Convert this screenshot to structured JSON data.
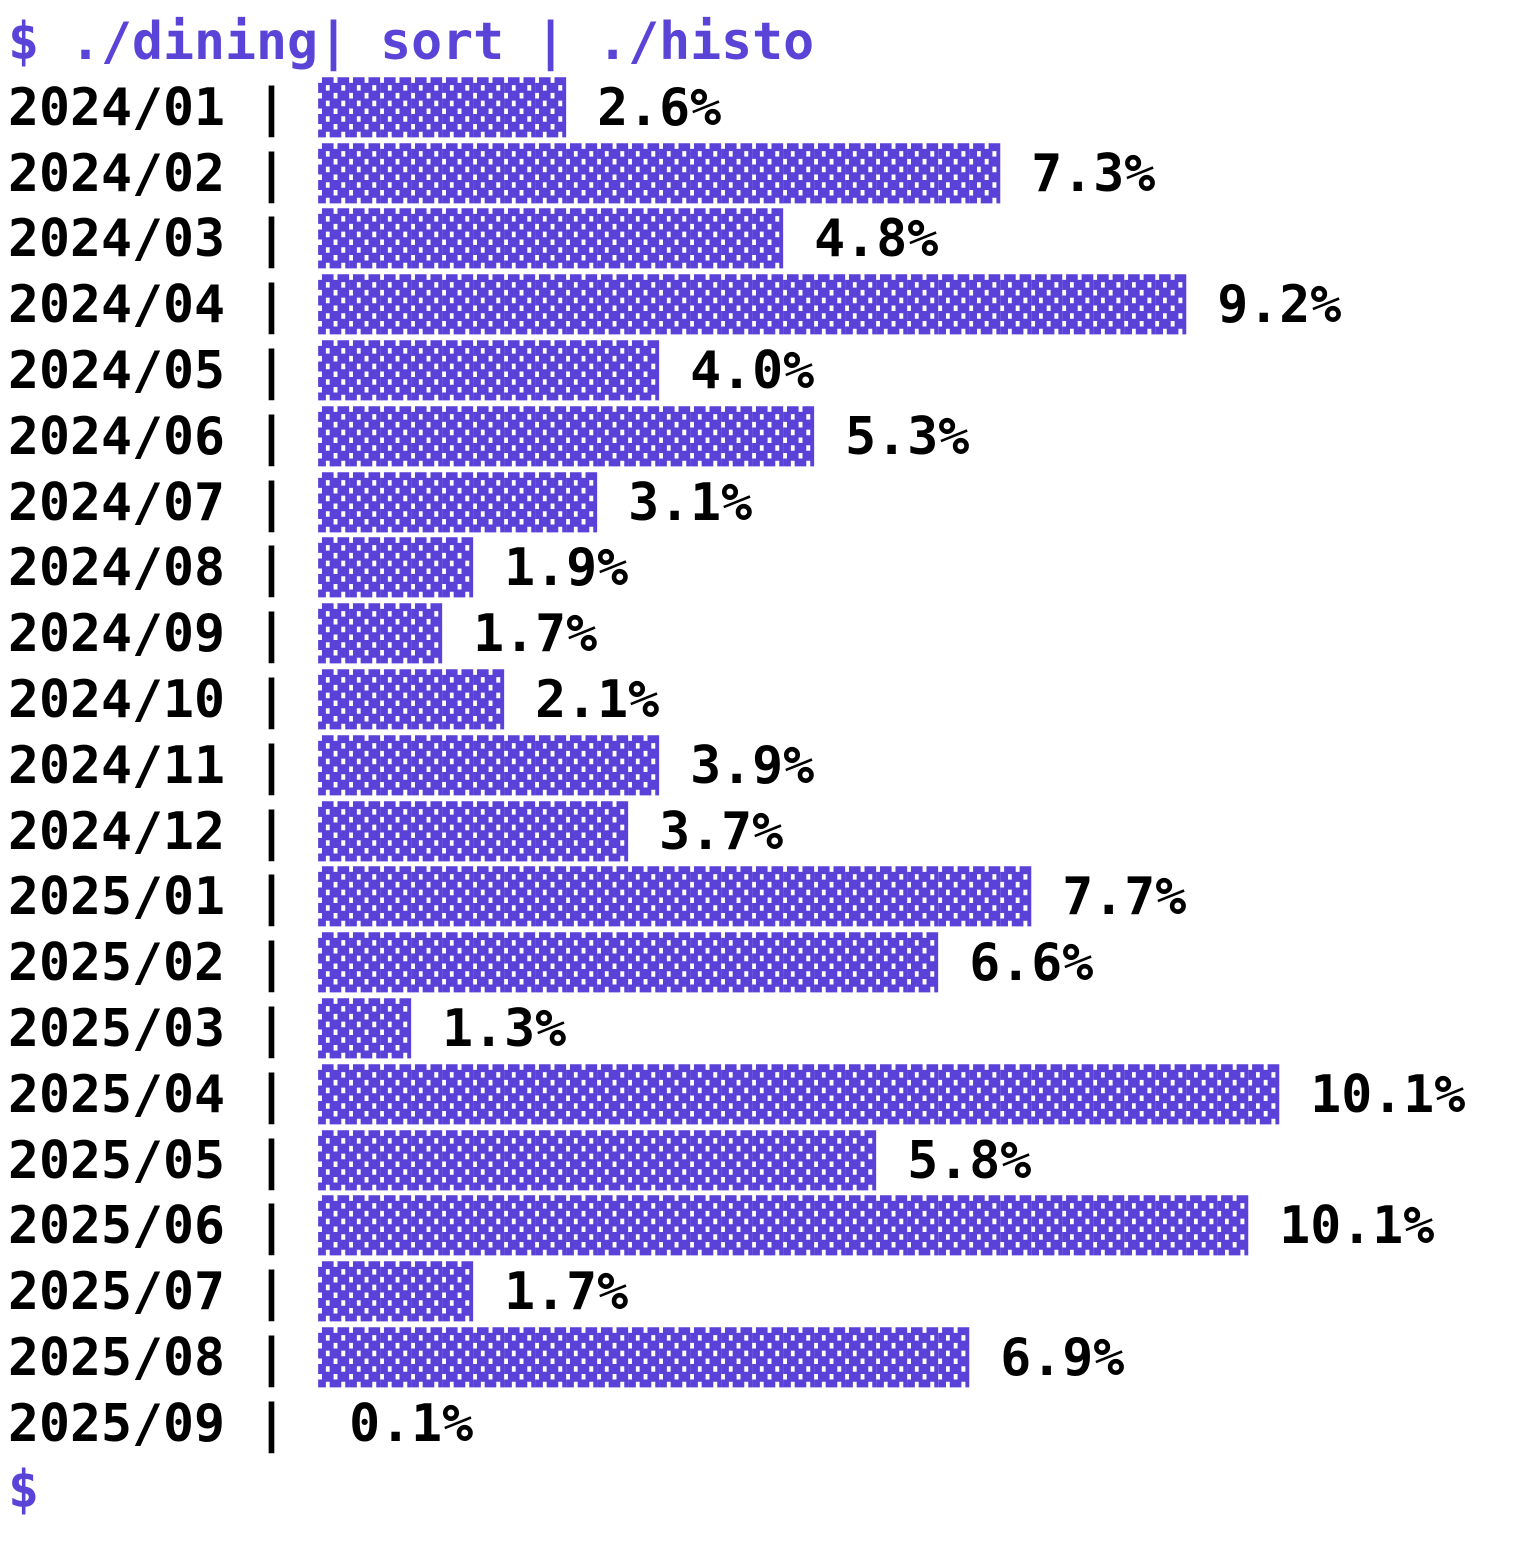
{
  "terminal": {
    "prompt_line": "$ ./dining| sort | ./histo",
    "trailing_prompt": "$",
    "separator": " | ",
    "colors": {
      "accent": "#5a44d8",
      "bar": "#5a42d8",
      "text": "#000000",
      "background": "#ffffff"
    }
  },
  "chart_data": {
    "type": "bar",
    "orientation": "horizontal",
    "unit": "percent",
    "bar_character": "▓",
    "title": "",
    "xlabel": "",
    "ylabel": "",
    "xlim": [
      0,
      10.5
    ],
    "grid": false,
    "legend": "none",
    "categories": [
      "2024/01",
      "2024/02",
      "2024/03",
      "2024/04",
      "2024/05",
      "2024/06",
      "2024/07",
      "2024/08",
      "2024/09",
      "2024/10",
      "2024/11",
      "2024/12",
      "2025/01",
      "2025/02",
      "2025/03",
      "2025/04",
      "2025/05",
      "2025/06",
      "2025/07",
      "2025/08",
      "2025/09"
    ],
    "values": [
      2.6,
      7.3,
      4.8,
      9.2,
      4.0,
      5.3,
      3.1,
      1.9,
      1.7,
      2.1,
      3.9,
      3.7,
      7.7,
      6.6,
      1.3,
      10.1,
      5.8,
      10.1,
      1.7,
      6.9,
      0.1
    ],
    "labels": [
      "2.6%",
      "7.3%",
      "4.8%",
      "9.2%",
      "4.0%",
      "5.3%",
      "3.1%",
      "1.9%",
      "1.7%",
      "2.1%",
      "3.9%",
      "3.7%",
      "7.7%",
      "6.6%",
      "1.3%",
      "10.1%",
      "5.8%",
      "10.1%",
      "1.7%",
      "6.9%",
      "0.1%"
    ],
    "bar_chars": [
      8,
      22,
      15,
      28,
      11,
      16,
      9,
      5,
      4,
      6,
      11,
      10,
      23,
      20,
      3,
      31,
      18,
      30,
      5,
      21,
      0
    ]
  }
}
